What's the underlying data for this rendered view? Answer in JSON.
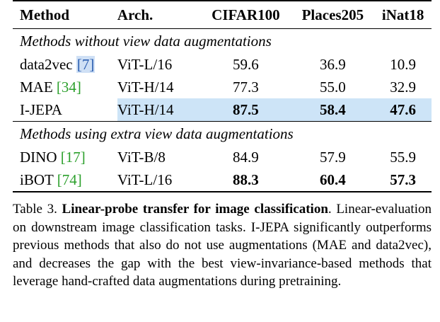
{
  "table": {
    "headers": [
      "Method",
      "Arch.",
      "CIFAR100",
      "Places205",
      "iNat18"
    ],
    "sections": [
      {
        "title": "Methods without view data augmentations",
        "rows": [
          {
            "method": "data2vec",
            "ref": "[7]",
            "arch": "ViT-L/16",
            "cifar": "59.6",
            "places": "36.9",
            "inat": "10.9"
          },
          {
            "method": "MAE",
            "ref": "[34]",
            "arch": "ViT-H/14",
            "cifar": "77.3",
            "places": "55.0",
            "inat": "32.9"
          },
          {
            "method": "I-JEPA",
            "ref": "",
            "arch": "ViT-H/14",
            "cifar": "87.5",
            "places": "58.4",
            "inat": "47.6"
          }
        ]
      },
      {
        "title": "Methods using extra view data augmentations",
        "rows": [
          {
            "method": "DINO",
            "ref": "[17]",
            "arch": "ViT-B/8",
            "cifar": "84.9",
            "places": "57.9",
            "inat": "55.9"
          },
          {
            "method": "iBOT",
            "ref": "[74]",
            "arch": "ViT-L/16",
            "cifar": "88.3",
            "places": "60.4",
            "inat": "57.3"
          }
        ]
      }
    ]
  },
  "caption": {
    "label": "Table 3.",
    "bold_title": "Linear-probe transfer for image classification",
    "text": ". Linear-evaluation on downstream image classification tasks. I-JEPA significantly outperforms previous methods that also do not use augmentations (MAE and data2vec), and decreases the gap with the best view-invariance-based methods that leverage hand-crafted data augmentations during pretraining."
  },
  "colors": {
    "highlight": "#cde4f7",
    "citation_green": "#2ca02c",
    "citation_blue": "#2a5db0"
  }
}
